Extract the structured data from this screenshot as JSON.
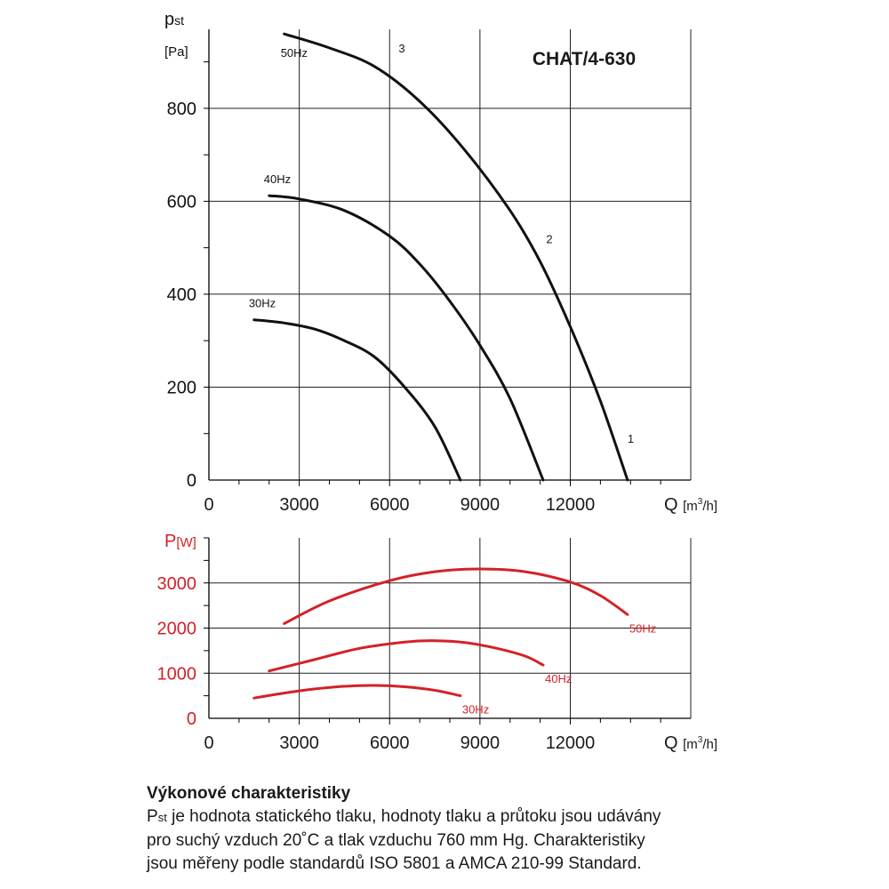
{
  "colors": {
    "pressure": "#111111",
    "power": "#d42127",
    "grid": "#222222"
  },
  "chart_data": [
    {
      "type": "line",
      "title": "CHAT/4-630",
      "ylabel_main": "p",
      "ylabel_sub": "st",
      "ylabel_unit": "[Pa]",
      "xlabel": "Q",
      "xlabel_unit_pre": "[m",
      "xlabel_unit_sup": "3",
      "xlabel_unit_post": "/h]",
      "xlim": [
        0,
        16000
      ],
      "ylim": [
        0,
        970
      ],
      "x_ticks": [
        0,
        3000,
        6000,
        9000,
        12000
      ],
      "y_ticks": [
        0,
        200,
        400,
        600,
        800
      ],
      "grid": true,
      "series": [
        {
          "name": "50Hz",
          "points": [
            [
              2500,
              960
            ],
            [
              4000,
              930
            ],
            [
              5500,
              890
            ],
            [
              7000,
              815
            ],
            [
              8500,
              710
            ],
            [
              10000,
              580
            ],
            [
              11000,
              470
            ],
            [
              12000,
              330
            ],
            [
              13000,
              170
            ],
            [
              13900,
              0
            ]
          ]
        },
        {
          "name": "40Hz",
          "points": [
            [
              2000,
              612
            ],
            [
              3000,
              605
            ],
            [
              4500,
              580
            ],
            [
              6000,
              525
            ],
            [
              7000,
              465
            ],
            [
              8000,
              385
            ],
            [
              9000,
              290
            ],
            [
              10000,
              175
            ],
            [
              11100,
              0
            ]
          ]
        },
        {
          "name": "30Hz",
          "points": [
            [
              1500,
              345
            ],
            [
              2500,
              338
            ],
            [
              3500,
              325
            ],
            [
              4500,
              300
            ],
            [
              5500,
              265
            ],
            [
              6500,
              200
            ],
            [
              7500,
              115
            ],
            [
              8350,
              0
            ]
          ]
        }
      ],
      "point_markers": [
        {
          "label": "1",
          "x": 13900,
          "y": 80
        },
        {
          "label": "2",
          "x": 11200,
          "y": 510
        },
        {
          "label": "3",
          "x": 6300,
          "y": 920
        }
      ]
    },
    {
      "type": "line",
      "ylabel_main": "P",
      "ylabel_unit": "[W]",
      "xlabel": "Q",
      "xlabel_unit_pre": "[m",
      "xlabel_unit_sup": "3",
      "xlabel_unit_post": "/h]",
      "xlim": [
        0,
        16000
      ],
      "ylim": [
        0,
        4000
      ],
      "x_ticks": [
        0,
        3000,
        6000,
        9000,
        12000
      ],
      "y_ticks": [
        0,
        1000,
        2000,
        3000
      ],
      "grid": true,
      "series": [
        {
          "name": "50Hz",
          "points": [
            [
              2500,
              2100
            ],
            [
              4000,
              2600
            ],
            [
              6000,
              3050
            ],
            [
              7500,
              3250
            ],
            [
              9000,
              3310
            ],
            [
              10500,
              3250
            ],
            [
              12000,
              3020
            ],
            [
              13000,
              2720
            ],
            [
              13900,
              2300
            ]
          ]
        },
        {
          "name": "40Hz",
          "points": [
            [
              2000,
              1050
            ],
            [
              3500,
              1300
            ],
            [
              5000,
              1550
            ],
            [
              6500,
              1690
            ],
            [
              7500,
              1720
            ],
            [
              8500,
              1680
            ],
            [
              9500,
              1560
            ],
            [
              10500,
              1380
            ],
            [
              11100,
              1180
            ]
          ]
        },
        {
          "name": "30Hz",
          "points": [
            [
              1500,
              450
            ],
            [
              2500,
              560
            ],
            [
              3500,
              650
            ],
            [
              4500,
              710
            ],
            [
              5500,
              730
            ],
            [
              6500,
              700
            ],
            [
              7500,
              620
            ],
            [
              8350,
              500
            ]
          ]
        }
      ]
    }
  ],
  "caption": {
    "title": "Výkonové charakteristiky",
    "line1_prefix": "P",
    "line1_sub": "st",
    "line1_rest": " je hodnota statického tlaku, hodnoty tlaku a průtoku jsou udávány",
    "line2": "pro suchý vzduch 20˚C a tlak vzduchu 760 mm Hg. Charakteristiky",
    "line3": "jsou měřeny podle standardů ISO 5801 a AMCA 210-99 Standard."
  }
}
